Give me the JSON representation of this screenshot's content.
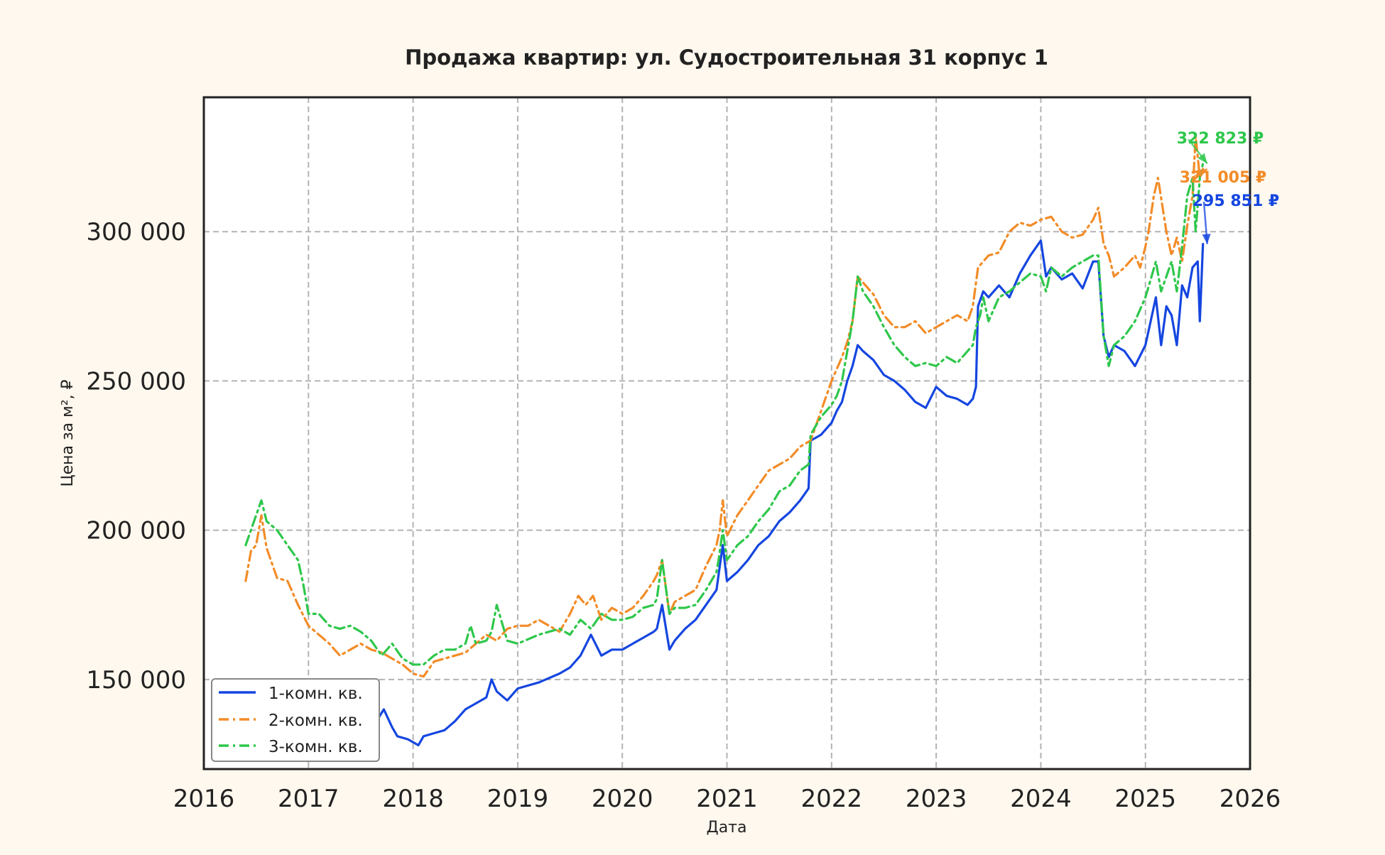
{
  "chart_data": {
    "type": "line",
    "title": "Продажа квартир: ул. Судостроительная 31 корпус 1",
    "xlabel": "Дата",
    "ylabel": "Цена за м², ₽",
    "xlim": [
      2016.0,
      2026.0
    ],
    "ylim": [
      120000,
      345000
    ],
    "x_ticks": [
      2016,
      2017,
      2018,
      2019,
      2020,
      2021,
      2022,
      2023,
      2024,
      2025,
      2026
    ],
    "x_tick_labels": [
      "2016",
      "2017",
      "2018",
      "2019",
      "2020",
      "2021",
      "2022",
      "2023",
      "2024",
      "2025",
      "2026"
    ],
    "y_ticks": [
      150000,
      200000,
      250000,
      300000
    ],
    "y_tick_labels": [
      "150 000",
      "200 000",
      "250 000",
      "300 000"
    ],
    "grid": true,
    "legend_position": "lower-left",
    "colors": {
      "background": "#fff8ee",
      "plot_background": "#ffffff",
      "series_1": "#1546e0",
      "series_2": "#f28c28",
      "series_3": "#2ec74b"
    },
    "series": [
      {
        "name": "1-комн. кв.",
        "color": "#1546e0",
        "style": "solid",
        "x": [
          2017.5,
          2017.65,
          2017.72,
          2017.8,
          2017.85,
          2017.95,
          2018.05,
          2018.1,
          2018.2,
          2018.3,
          2018.4,
          2018.5,
          2018.6,
          2018.7,
          2018.75,
          2018.8,
          2018.9,
          2019.0,
          2019.2,
          2019.4,
          2019.5,
          2019.6,
          2019.7,
          2019.8,
          2019.9,
          2020.0,
          2020.1,
          2020.2,
          2020.3,
          2020.33,
          2020.38,
          2020.45,
          2020.5,
          2020.6,
          2020.7,
          2020.8,
          2020.9,
          2020.92,
          2020.96,
          2021.0,
          2021.1,
          2021.2,
          2021.3,
          2021.4,
          2021.5,
          2021.6,
          2021.7,
          2021.78,
          2021.8,
          2021.9,
          2022.0,
          2022.05,
          2022.1,
          2022.15,
          2022.2,
          2022.25,
          2022.3,
          2022.4,
          2022.5,
          2022.6,
          2022.7,
          2022.8,
          2022.9,
          2023.0,
          2023.1,
          2023.2,
          2023.3,
          2023.35,
          2023.38,
          2023.4,
          2023.45,
          2023.5,
          2023.6,
          2023.7,
          2023.8,
          2023.9,
          2024.0,
          2024.05,
          2024.1,
          2024.2,
          2024.3,
          2024.4,
          2024.5,
          2024.55,
          2024.6,
          2024.65,
          2024.7,
          2024.8,
          2024.9,
          2025.0,
          2025.05,
          2025.1,
          2025.15,
          2025.2,
          2025.25,
          2025.3,
          2025.35,
          2025.4,
          2025.45,
          2025.5,
          2025.52,
          2025.55
        ],
        "y": [
          137000,
          136000,
          140000,
          134000,
          131000,
          130000,
          128000,
          131000,
          132000,
          133000,
          136000,
          140000,
          142000,
          144000,
          150000,
          146000,
          143000,
          147000,
          149000,
          152000,
          154000,
          158000,
          165000,
          158000,
          160000,
          160000,
          162000,
          164000,
          166000,
          167000,
          175000,
          160000,
          163000,
          167000,
          170000,
          175000,
          180000,
          185000,
          195000,
          183000,
          186000,
          190000,
          195000,
          198000,
          203000,
          206000,
          210000,
          214000,
          230000,
          232000,
          236000,
          240000,
          243000,
          250000,
          255000,
          262000,
          260000,
          257000,
          252000,
          250000,
          247000,
          243000,
          241000,
          248000,
          245000,
          244000,
          242000,
          244000,
          248000,
          275000,
          280000,
          278000,
          282000,
          278000,
          286000,
          292000,
          297000,
          285000,
          288000,
          284000,
          286000,
          281000,
          290000,
          290000,
          265000,
          258000,
          262000,
          260000,
          255000,
          262000,
          270000,
          278000,
          262000,
          275000,
          272000,
          262000,
          282000,
          278000,
          288000,
          290000,
          270000,
          295851
        ]
      },
      {
        "name": "2-комн. кв.",
        "color": "#f28c28",
        "style": "dashdot",
        "x": [
          2016.4,
          2016.45,
          2016.5,
          2016.55,
          2016.6,
          2016.7,
          2016.8,
          2016.9,
          2017.0,
          2017.1,
          2017.2,
          2017.3,
          2017.4,
          2017.5,
          2017.6,
          2017.7,
          2017.8,
          2017.9,
          2018.0,
          2018.1,
          2018.2,
          2018.3,
          2018.4,
          2018.5,
          2018.6,
          2018.7,
          2018.8,
          2018.9,
          2019.0,
          2019.1,
          2019.2,
          2019.3,
          2019.4,
          2019.5,
          2019.58,
          2019.65,
          2019.72,
          2019.8,
          2019.9,
          2020.0,
          2020.1,
          2020.2,
          2020.3,
          2020.33,
          2020.38,
          2020.45,
          2020.5,
          2020.6,
          2020.7,
          2020.8,
          2020.9,
          2020.93,
          2020.96,
          2021.0,
          2021.1,
          2021.2,
          2021.3,
          2021.4,
          2021.5,
          2021.6,
          2021.7,
          2021.8,
          2021.9,
          2022.0,
          2022.1,
          2022.15,
          2022.2,
          2022.25,
          2022.3,
          2022.4,
          2022.5,
          2022.6,
          2022.7,
          2022.8,
          2022.9,
          2023.0,
          2023.1,
          2023.2,
          2023.3,
          2023.35,
          2023.4,
          2023.45,
          2023.5,
          2023.6,
          2023.7,
          2023.8,
          2023.9,
          2024.0,
          2024.1,
          2024.2,
          2024.3,
          2024.4,
          2024.5,
          2024.55,
          2024.6,
          2024.65,
          2024.7,
          2024.8,
          2024.9,
          2024.95,
          2025.0,
          2025.03,
          2025.08,
          2025.12,
          2025.2,
          2025.25,
          2025.3,
          2025.35,
          2025.4,
          2025.45,
          2025.48,
          2025.52,
          2025.55
        ],
        "y": [
          183000,
          193000,
          195000,
          205000,
          194000,
          184000,
          183000,
          175000,
          168000,
          165000,
          162000,
          158000,
          160000,
          162000,
          160000,
          159000,
          157000,
          155000,
          152000,
          151000,
          156000,
          157000,
          158000,
          159000,
          162000,
          165000,
          163000,
          167000,
          168000,
          168000,
          170000,
          168000,
          166000,
          172000,
          178000,
          175000,
          178000,
          170000,
          174000,
          172000,
          174000,
          178000,
          183000,
          185000,
          190000,
          172000,
          176000,
          178000,
          180000,
          188000,
          195000,
          200000,
          210000,
          198000,
          205000,
          210000,
          215000,
          220000,
          222000,
          224000,
          228000,
          230000,
          240000,
          250000,
          258000,
          263000,
          270000,
          285000,
          283000,
          279000,
          272000,
          268000,
          268000,
          270000,
          266000,
          268000,
          270000,
          272000,
          270000,
          275000,
          288000,
          290000,
          292000,
          293000,
          300000,
          303000,
          302000,
          304000,
          305000,
          300000,
          298000,
          299000,
          304000,
          308000,
          296000,
          292000,
          285000,
          288000,
          292000,
          288000,
          295000,
          300000,
          312000,
          318000,
          300000,
          292000,
          298000,
          290000,
          302000,
          312000,
          332000,
          318000,
          321005
        ]
      },
      {
        "name": "3-комн. кв.",
        "color": "#2ec74b",
        "style": "dashdot",
        "x": [
          2016.4,
          2016.45,
          2016.5,
          2016.55,
          2016.6,
          2016.7,
          2016.8,
          2016.9,
          2016.95,
          2017.0,
          2017.1,
          2017.2,
          2017.3,
          2017.4,
          2017.5,
          2017.6,
          2017.7,
          2017.8,
          2017.9,
          2018.0,
          2018.1,
          2018.2,
          2018.3,
          2018.4,
          2018.5,
          2018.55,
          2018.6,
          2018.7,
          2018.75,
          2018.8,
          2018.9,
          2019.0,
          2019.2,
          2019.4,
          2019.5,
          2019.6,
          2019.7,
          2019.8,
          2019.9,
          2020.0,
          2020.1,
          2020.2,
          2020.3,
          2020.33,
          2020.38,
          2020.45,
          2020.5,
          2020.6,
          2020.7,
          2020.8,
          2020.9,
          2020.92,
          2020.96,
          2021.0,
          2021.1,
          2021.2,
          2021.3,
          2021.4,
          2021.5,
          2021.6,
          2021.7,
          2021.78,
          2021.8,
          2021.9,
          2022.0,
          2022.05,
          2022.1,
          2022.15,
          2022.2,
          2022.25,
          2022.3,
          2022.4,
          2022.5,
          2022.6,
          2022.7,
          2022.8,
          2022.9,
          2023.0,
          2023.1,
          2023.2,
          2023.3,
          2023.35,
          2023.38,
          2023.42,
          2023.45,
          2023.5,
          2023.6,
          2023.7,
          2023.8,
          2023.9,
          2024.0,
          2024.05,
          2024.1,
          2024.2,
          2024.3,
          2024.4,
          2024.5,
          2024.55,
          2024.6,
          2024.65,
          2024.7,
          2024.8,
          2024.9,
          2025.0,
          2025.05,
          2025.1,
          2025.15,
          2025.2,
          2025.25,
          2025.3,
          2025.35,
          2025.4,
          2025.45,
          2025.48,
          2025.52,
          2025.55
        ],
        "y": [
          195000,
          200000,
          205000,
          210000,
          203000,
          200000,
          195000,
          190000,
          182000,
          172000,
          172000,
          168000,
          167000,
          168000,
          166000,
          163000,
          158000,
          162000,
          157000,
          155000,
          155000,
          158000,
          160000,
          160000,
          162000,
          168000,
          162000,
          163000,
          166000,
          175000,
          163000,
          162000,
          165000,
          167000,
          165000,
          170000,
          167000,
          172000,
          170000,
          170000,
          171000,
          174000,
          175000,
          177000,
          190000,
          172000,
          174000,
          174000,
          175000,
          180000,
          186000,
          190000,
          200000,
          190000,
          195000,
          198000,
          203000,
          207000,
          213000,
          215000,
          220000,
          222000,
          232000,
          238000,
          242000,
          245000,
          250000,
          260000,
          270000,
          285000,
          280000,
          275000,
          268000,
          262000,
          258000,
          255000,
          256000,
          255000,
          258000,
          256000,
          260000,
          262000,
          268000,
          272000,
          278000,
          270000,
          278000,
          280000,
          283000,
          286000,
          285000,
          280000,
          288000,
          285000,
          288000,
          290000,
          292000,
          292000,
          265000,
          255000,
          262000,
          265000,
          270000,
          278000,
          284000,
          290000,
          280000,
          285000,
          290000,
          280000,
          295000,
          312000,
          318000,
          300000,
          318000,
          322823
        ]
      }
    ],
    "annotations": [
      {
        "text": "322 823 ₽",
        "color": "#2ec74b",
        "x": 2025.55,
        "y": 322823
      },
      {
        "text": "321 005 ₽",
        "color": "#f28c28",
        "x": 2025.55,
        "y": 321005
      },
      {
        "text": "295 851 ₽",
        "color": "#1546e0",
        "x": 2025.55,
        "y": 295851
      }
    ]
  }
}
